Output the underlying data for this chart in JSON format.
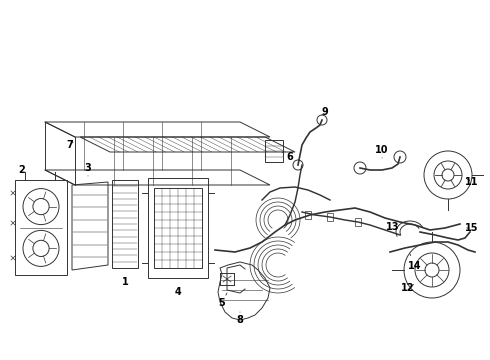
{
  "background_color": "#ffffff",
  "line_color": "#333333",
  "text_color": "#000000",
  "fig_width": 4.9,
  "fig_height": 3.6,
  "dpi": 100
}
